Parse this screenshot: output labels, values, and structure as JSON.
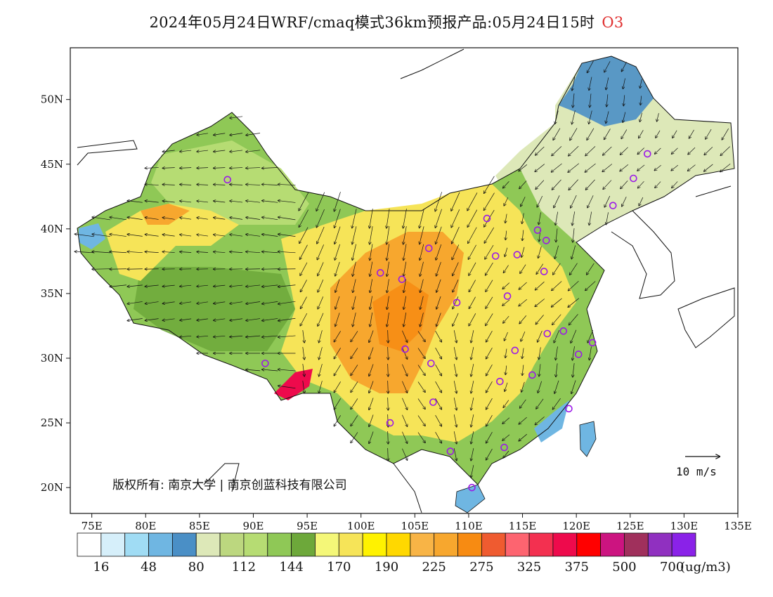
{
  "title": {
    "text": "2024年05月24日WRF/cmaq模式36km预报产品:05月24日15时",
    "species": "O3"
  },
  "axes": {
    "lon_range": [
      73,
      135
    ],
    "lat_range": [
      18,
      54
    ],
    "x_ticks": [
      "75E",
      "80E",
      "85E",
      "90E",
      "95E",
      "100E",
      "105E",
      "110E",
      "115E",
      "120E",
      "125E",
      "130E",
      "135E"
    ],
    "x_tick_values": [
      75,
      80,
      85,
      90,
      95,
      100,
      105,
      110,
      115,
      120,
      125,
      130,
      135
    ],
    "y_ticks": [
      "50N",
      "45N",
      "40N",
      "35N",
      "30N",
      "25N",
      "20N"
    ],
    "y_tick_values": [
      50,
      45,
      40,
      35,
      30,
      25,
      20
    ]
  },
  "credit": "版权所有: 南京大学 | 南京创蓝科技有限公司",
  "wind_reference": {
    "label": "10 m/s"
  },
  "colorbar": {
    "unit": "(ug/m3)",
    "labels": [
      "16",
      "48",
      "80",
      "112",
      "144",
      "170",
      "190",
      "225",
      "275",
      "325",
      "375",
      "500",
      "700"
    ],
    "colors": [
      "#ffffff",
      "#d6effa",
      "#a0dcf4",
      "#6fb6e2",
      "#4a8fc6",
      "#dde8b8",
      "#bcd77f",
      "#b6dc73",
      "#8fc856",
      "#6da83a",
      "#f4f778",
      "#f6e458",
      "#fff200",
      "#ffd800",
      "#f8b446",
      "#f7a72e",
      "#f78b12",
      "#ef5b30",
      "#fd6470",
      "#f33050",
      "#ee0a4c",
      "#ff0000",
      "#cc1480",
      "#a0305c",
      "#9030c0",
      "#8a22e8"
    ]
  },
  "colors": {
    "region_low": "#8fc856",
    "region_mid": "#f6e458",
    "region_high": "#f7a72e",
    "ocean_low": "#4a8fc6",
    "station_marker": "#9b19e8"
  },
  "stations_lonlat": [
    [
      87.6,
      43.8
    ],
    [
      126.6,
      45.8
    ],
    [
      125.3,
      43.9
    ],
    [
      123.4,
      41.8
    ],
    [
      111.7,
      40.8
    ],
    [
      116.4,
      39.9
    ],
    [
      117.2,
      39.1
    ],
    [
      106.3,
      38.5
    ],
    [
      112.5,
      37.9
    ],
    [
      114.5,
      38.0
    ],
    [
      101.8,
      36.6
    ],
    [
      103.8,
      36.1
    ],
    [
      117.0,
      36.7
    ],
    [
      108.9,
      34.3
    ],
    [
      113.6,
      34.8
    ],
    [
      117.3,
      31.9
    ],
    [
      118.8,
      32.1
    ],
    [
      121.5,
      31.2
    ],
    [
      120.2,
      30.3
    ],
    [
      114.3,
      30.6
    ],
    [
      104.1,
      30.7
    ],
    [
      106.5,
      29.6
    ],
    [
      91.1,
      29.6
    ],
    [
      112.9,
      28.2
    ],
    [
      115.9,
      28.7
    ],
    [
      106.7,
      26.6
    ],
    [
      119.3,
      26.1
    ],
    [
      102.7,
      25.0
    ],
    [
      113.3,
      23.1
    ],
    [
      108.3,
      22.8
    ],
    [
      110.3,
      20.0
    ]
  ]
}
